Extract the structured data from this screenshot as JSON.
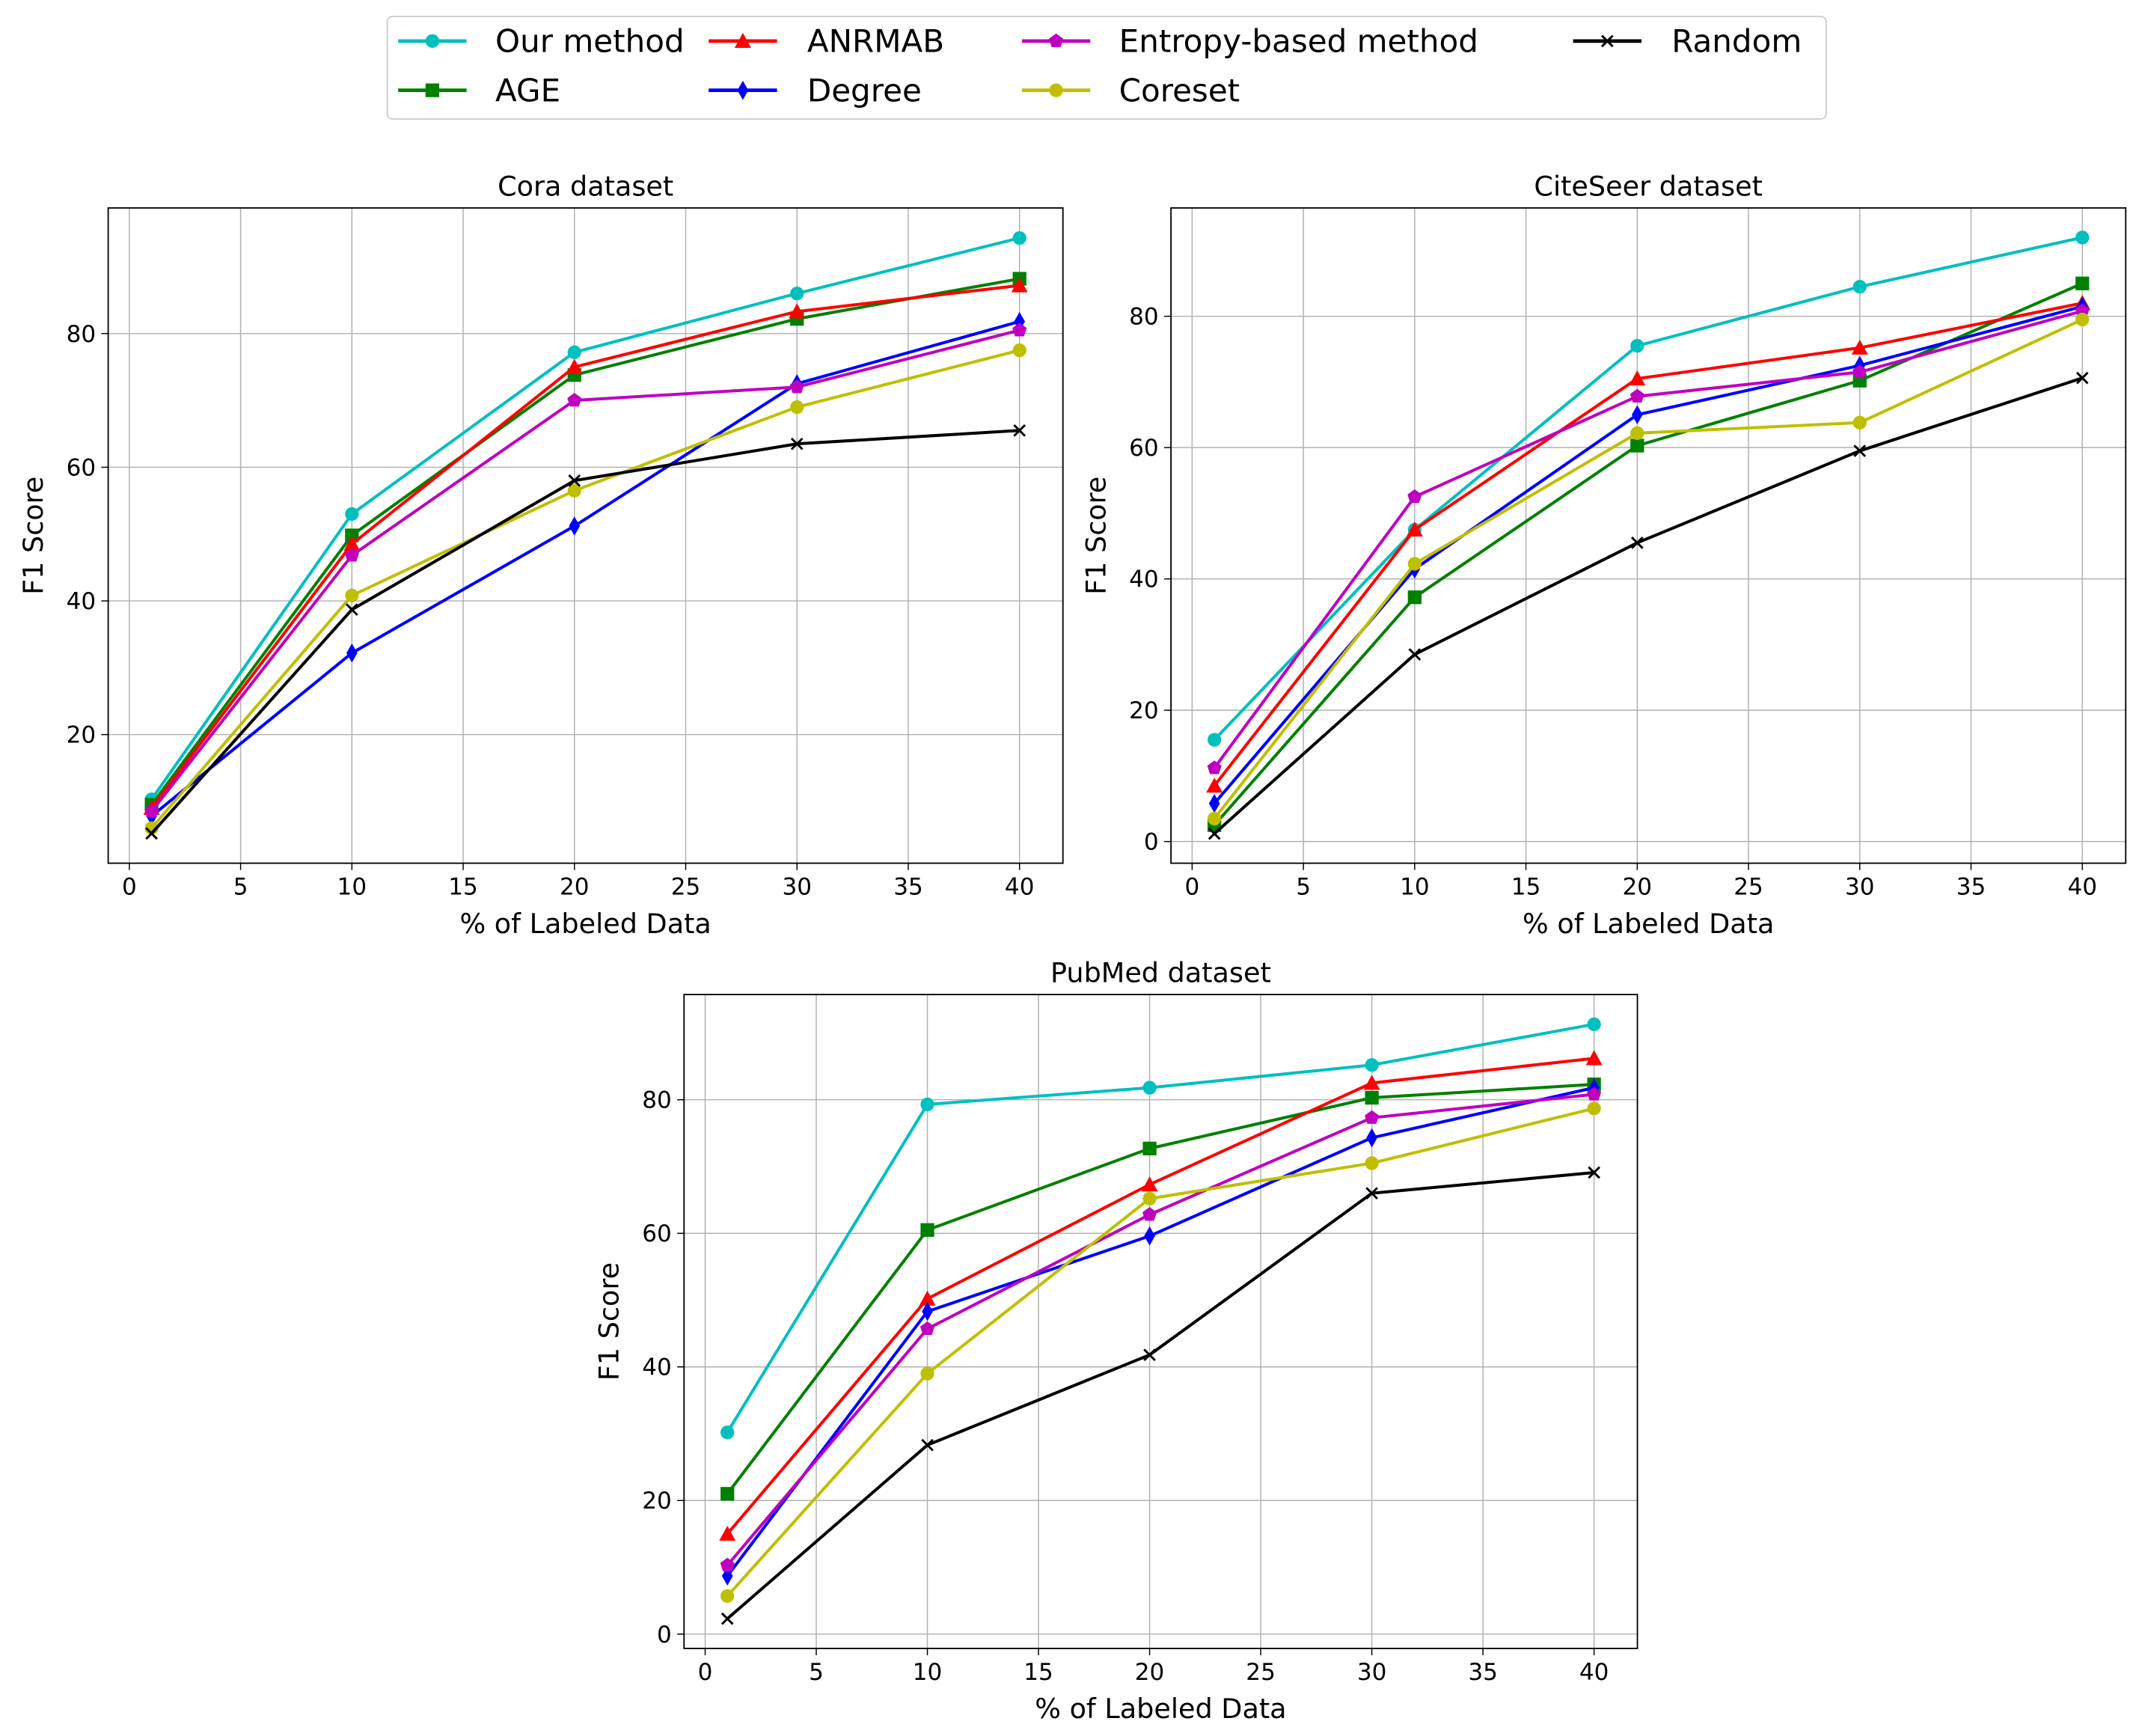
{
  "chart_data": [
    {
      "type": "line",
      "title": "Cora dataset",
      "xlabel": "% of Labeled Data",
      "ylabel": "F1 Score",
      "x": [
        1,
        10,
        20,
        30,
        40
      ],
      "xlim": [
        -0.95,
        41.95
      ],
      "ylim": [
        0.75,
        98.8
      ],
      "xticks": [
        0,
        5,
        10,
        15,
        20,
        25,
        30,
        35,
        40
      ],
      "yticks": [
        20,
        40,
        60,
        80
      ],
      "grid": true,
      "series": [
        {
          "name": "Our method",
          "color": "#00bfbf",
          "marker": "o",
          "values": [
            10.3,
            53,
            77.2,
            86,
            94.3
          ]
        },
        {
          "name": "AGE",
          "color": "#008000",
          "marker": "s",
          "values": [
            9.5,
            49.8,
            73.8,
            82.2,
            88.2
          ]
        },
        {
          "name": "ANRMAB",
          "color": "#ff0000",
          "marker": "^",
          "values": [
            9,
            48.5,
            75,
            83.3,
            87.2
          ]
        },
        {
          "name": "Degree",
          "color": "#0000ff",
          "marker": "d",
          "values": [
            7.8,
            32.2,
            51.2,
            72.5,
            81.8
          ]
        },
        {
          "name": "Entropy-based method",
          "color": "#bf00bf",
          "marker": "p",
          "values": [
            8.5,
            46.8,
            70,
            72,
            80.5
          ]
        },
        {
          "name": "Coreset",
          "color": "#bfbf00",
          "marker": "o",
          "values": [
            6,
            40.8,
            56.5,
            69,
            77.5
          ]
        },
        {
          "name": "Random",
          "color": "#000000",
          "marker": "x",
          "values": [
            5.2,
            38.7,
            58,
            63.5,
            65.5
          ]
        }
      ]
    },
    {
      "type": "line",
      "title": "CiteSeer dataset",
      "xlabel": "% of Labeled Data",
      "ylabel": "F1 Score",
      "x": [
        1,
        10,
        20,
        30,
        40
      ],
      "xlim": [
        -0.95,
        41.95
      ],
      "ylim": [
        -3.3,
        96.5
      ],
      "xticks": [
        0,
        5,
        10,
        15,
        20,
        25,
        30,
        35,
        40
      ],
      "yticks": [
        0,
        20,
        40,
        60,
        80
      ],
      "grid": true,
      "series": [
        {
          "name": "Our method",
          "color": "#00bfbf",
          "marker": "o",
          "values": [
            15.5,
            47.5,
            75.5,
            84.5,
            92
          ]
        },
        {
          "name": "AGE",
          "color": "#008000",
          "marker": "s",
          "values": [
            2.5,
            37.2,
            60.3,
            70.2,
            85
          ]
        },
        {
          "name": "ANRMAB",
          "color": "#ff0000",
          "marker": "^",
          "values": [
            8.5,
            47.5,
            70.5,
            75.2,
            82
          ]
        },
        {
          "name": "Degree",
          "color": "#0000ff",
          "marker": "d",
          "values": [
            5.8,
            41.5,
            65,
            72.5,
            81.5
          ]
        },
        {
          "name": "Entropy-based method",
          "color": "#bf00bf",
          "marker": "p",
          "values": [
            11.2,
            52.5,
            67.8,
            71.5,
            80.8
          ]
        },
        {
          "name": "Coreset",
          "color": "#bfbf00",
          "marker": "o",
          "values": [
            3.5,
            42.3,
            62.2,
            63.8,
            79.5
          ]
        },
        {
          "name": "Random",
          "color": "#000000",
          "marker": "x",
          "values": [
            1.2,
            28.5,
            45.5,
            59.5,
            70.6
          ]
        }
      ]
    },
    {
      "type": "line",
      "title": "PubMed dataset",
      "xlabel": "% of Labeled Data",
      "ylabel": "F1 Score",
      "x": [
        1,
        10,
        20,
        30,
        40
      ],
      "xlim": [
        -0.95,
        41.95
      ],
      "ylim": [
        -2.15,
        95.75
      ],
      "xticks": [
        0,
        5,
        10,
        15,
        20,
        25,
        30,
        35,
        40
      ],
      "yticks": [
        0,
        20,
        40,
        60,
        80
      ],
      "grid": true,
      "series": [
        {
          "name": "Our method",
          "color": "#00bfbf",
          "marker": "o",
          "values": [
            30.2,
            79.3,
            81.8,
            85.2,
            91.3
          ]
        },
        {
          "name": "AGE",
          "color": "#008000",
          "marker": "s",
          "values": [
            21,
            60.5,
            72.7,
            80.3,
            82.3
          ]
        },
        {
          "name": "ANRMAB",
          "color": "#ff0000",
          "marker": "^",
          "values": [
            15,
            50.2,
            67.3,
            82.5,
            86.2
          ]
        },
        {
          "name": "Degree",
          "color": "#0000ff",
          "marker": "d",
          "values": [
            8.7,
            48.3,
            59.6,
            74.3,
            81.8
          ]
        },
        {
          "name": "Entropy-based method",
          "color": "#bf00bf",
          "marker": "p",
          "values": [
            10.3,
            45.7,
            62.8,
            77.3,
            80.8
          ]
        },
        {
          "name": "Coreset",
          "color": "#bfbf00",
          "marker": "o",
          "values": [
            5.7,
            39,
            65.2,
            70.5,
            78.7
          ]
        },
        {
          "name": "Random",
          "color": "#000000",
          "marker": "x",
          "values": [
            2.3,
            28.3,
            41.8,
            66,
            69.1
          ]
        }
      ]
    }
  ]
}
